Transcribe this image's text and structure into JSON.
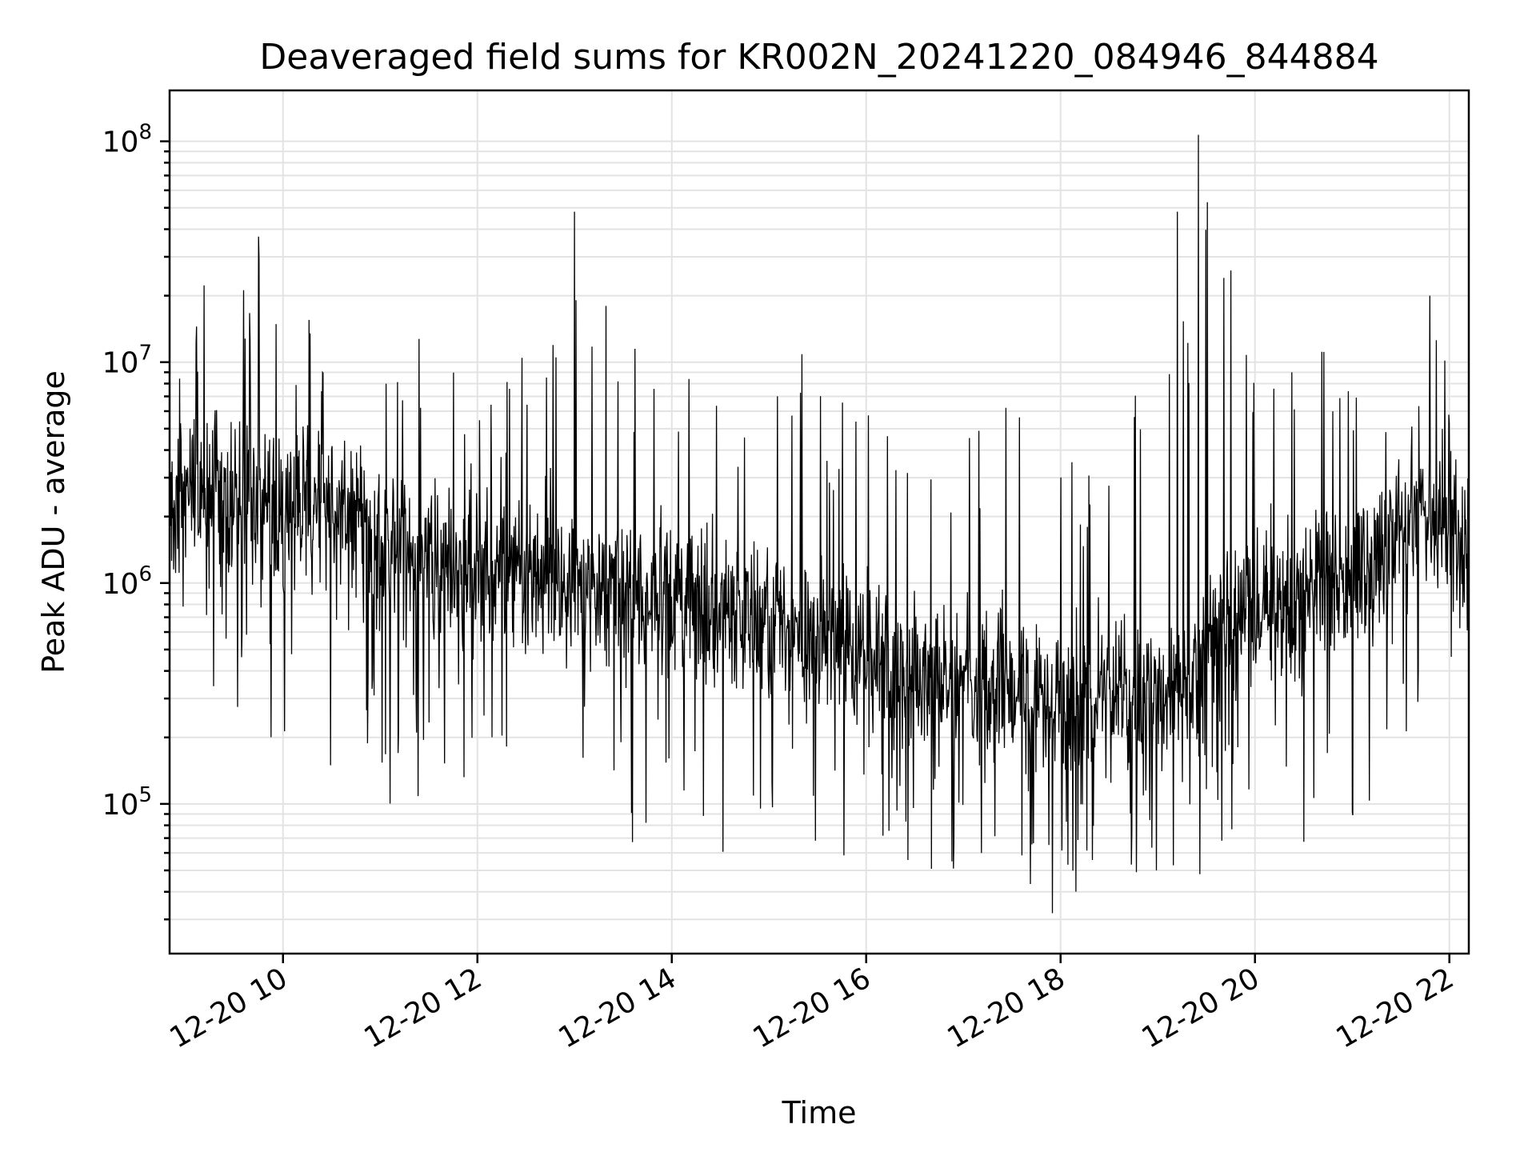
{
  "chart_data": {
    "type": "line",
    "title": "Deaveraged field sums for KR002N_20241220_084946_844884",
    "xlabel": "Time",
    "ylabel": "Peak ADU - average",
    "x_axis": {
      "kind": "datetime",
      "range": [
        "2024-12-20 08:50",
        "2024-12-20 22:12"
      ],
      "tick_values": [
        "2024-12-20 10:00",
        "2024-12-20 12:00",
        "2024-12-20 14:00",
        "2024-12-20 16:00",
        "2024-12-20 18:00",
        "2024-12-20 20:00",
        "2024-12-20 22:00"
      ],
      "tick_labels": [
        "12-20 10",
        "12-20 12",
        "12-20 14",
        "12-20 16",
        "12-20 18",
        "12-20 20",
        "12-20 22"
      ]
    },
    "y_axis": {
      "scale": "log",
      "range": [
        21000,
        170000000
      ],
      "tick_values": [
        100000,
        1000000,
        10000000,
        100000000
      ],
      "tick_base": "10",
      "tick_exponents": [
        "5",
        "6",
        "7",
        "8"
      ]
    },
    "grid": true,
    "series": [
      {
        "color": "#000000",
        "approximate_envelope": [
          {
            "x": "2024-12-20 08:50",
            "min": 700000,
            "typical": 2400000,
            "max": 11000000
          },
          {
            "x": "2024-12-20 09:10",
            "min": 250000,
            "typical": 2500000,
            "max": 25000000
          },
          {
            "x": "2024-12-20 09:45",
            "min": 170000,
            "typical": 2300000,
            "max": 37000000
          },
          {
            "x": "2024-12-20 10:15",
            "min": 72000,
            "typical": 2000000,
            "max": 19000000
          },
          {
            "x": "2024-12-20 10:40",
            "min": 170000,
            "typical": 2200000,
            "max": 18000000
          },
          {
            "x": "2024-12-20 11:10",
            "min": 67000,
            "typical": 1500000,
            "max": 17000000
          },
          {
            "x": "2024-12-20 11:40",
            "min": 110000,
            "typical": 1300000,
            "max": 12000000
          },
          {
            "x": "2024-12-20 12:00",
            "min": 120000,
            "typical": 1200000,
            "max": 5500000
          },
          {
            "x": "2024-12-20 12:40",
            "min": 65000,
            "typical": 1100000,
            "max": 17000000
          },
          {
            "x": "2024-12-20 13:00",
            "min": 80000,
            "typical": 1000000,
            "max": 48000000
          },
          {
            "x": "2024-12-20 13:30",
            "min": 44000,
            "typical": 900000,
            "max": 18000000
          },
          {
            "x": "2024-12-20 14:10",
            "min": 60000,
            "typical": 800000,
            "max": 16000000
          },
          {
            "x": "2024-12-20 14:40",
            "min": 50000,
            "typical": 700000,
            "max": 5000000
          },
          {
            "x": "2024-12-20 15:20",
            "min": 50000,
            "typical": 600000,
            "max": 11000000
          },
          {
            "x": "2024-12-20 15:50",
            "min": 45000,
            "typical": 500000,
            "max": 7000000
          },
          {
            "x": "2024-12-20 16:20",
            "min": 45000,
            "typical": 400000,
            "max": 10000000
          },
          {
            "x": "2024-12-20 16:50",
            "min": 42000,
            "typical": 350000,
            "max": 5000000
          },
          {
            "x": "2024-12-20 17:20",
            "min": 48000,
            "typical": 350000,
            "max": 13000000
          },
          {
            "x": "2024-12-20 17:55",
            "min": 32000,
            "typical": 300000,
            "max": 6000000
          },
          {
            "x": "2024-12-20 18:30",
            "min": 40000,
            "typical": 300000,
            "max": 4000000
          },
          {
            "x": "2024-12-20 19:00",
            "min": 36000,
            "typical": 300000,
            "max": 16000000
          },
          {
            "x": "2024-12-20 19:12",
            "min": 40000,
            "typical": 350000,
            "max": 48000000
          },
          {
            "x": "2024-12-20 19:25",
            "min": 38000,
            "typical": 400000,
            "max": 107000000
          },
          {
            "x": "2024-12-20 19:45",
            "min": 60000,
            "typical": 700000,
            "max": 26000000
          },
          {
            "x": "2024-12-20 20:20",
            "min": 60000,
            "typical": 800000,
            "max": 13000000
          },
          {
            "x": "2024-12-20 20:40",
            "min": 48000,
            "typical": 900000,
            "max": 12000000
          },
          {
            "x": "2024-12-20 21:10",
            "min": 75000,
            "typical": 1200000,
            "max": 8000000
          },
          {
            "x": "2024-12-20 21:45",
            "min": 300000,
            "typical": 2200000,
            "max": 20000000
          },
          {
            "x": "2024-12-20 22:12",
            "min": 400000,
            "typical": 1500000,
            "max": 6500000
          }
        ],
        "notable_spikes": [
          {
            "x": "2024-12-20 09:45",
            "y": 37000000
          },
          {
            "x": "2024-12-20 13:00",
            "y": 48000000
          },
          {
            "x": "2024-12-20 19:12",
            "y": 48000000
          },
          {
            "x": "2024-12-20 19:25",
            "y": 107000000
          },
          {
            "x": "2024-12-20 19:45",
            "y": 26000000
          },
          {
            "x": "2024-12-20 21:48",
            "y": 20000000
          },
          {
            "x": "2024-12-20 17:55",
            "y": 32000
          }
        ]
      }
    ]
  }
}
